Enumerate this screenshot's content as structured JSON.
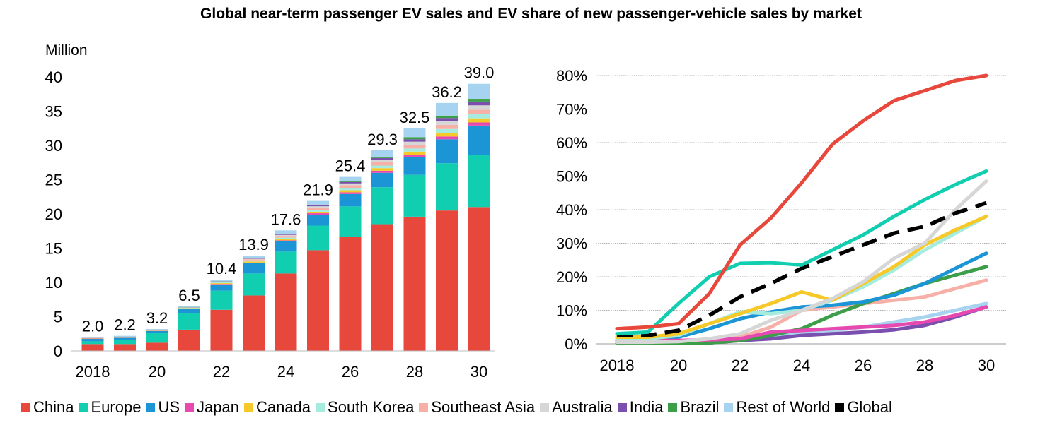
{
  "title": "Global near-term passenger EV sales and EV share of new passenger-vehicle sales by market",
  "colors": {
    "China": "#e8473b",
    "Europe": "#12ceb0",
    "US": "#1b95d6",
    "Japan": "#e64ab0",
    "Canada": "#f6c928",
    "South Korea": "#a6ecde",
    "Southeast Asia": "#f7b0a8",
    "Australia": "#d6d6d6",
    "India": "#7b4fae",
    "Brazil": "#3c9e48",
    "Rest of World": "#a6d3ef",
    "Global": "#000000",
    "Global share (dashed)": "#000000"
  },
  "legend": [
    "China",
    "Europe",
    "US",
    "Japan",
    "Canada",
    "South Korea",
    "Southeast Asia",
    "Australia",
    "India",
    "Brazil",
    "Rest of World",
    "Global"
  ],
  "chart_data": [
    {
      "type": "bar",
      "stacked": true,
      "title": "",
      "ylabel": "Million",
      "ylim": [
        0,
        40
      ],
      "yticks": [
        0,
        5,
        10,
        15,
        20,
        25,
        30,
        35,
        40
      ],
      "x": [
        2018,
        2019,
        2020,
        2021,
        2022,
        2023,
        2024,
        2025,
        2026,
        2027,
        2028,
        2029,
        2030
      ],
      "xtick_labels": [
        "2018",
        "",
        "20",
        "",
        "22",
        "",
        "24",
        "",
        "26",
        "",
        "28",
        "",
        "30"
      ],
      "totals": [
        2.0,
        2.2,
        3.2,
        6.5,
        10.4,
        13.9,
        17.6,
        21.9,
        25.4,
        29.3,
        32.5,
        36.2,
        39.0
      ],
      "total_labels": [
        "2.0",
        "2.2",
        "3.2",
        "6.5",
        "10.4",
        "13.9",
        "17.6",
        "21.9",
        "25.4",
        "29.3",
        "32.5",
        "36.2",
        "39.0"
      ],
      "series": [
        {
          "name": "China",
          "values": [
            1.0,
            1.0,
            1.2,
            3.1,
            6.0,
            8.1,
            11.3,
            14.7,
            16.7,
            18.5,
            19.6,
            20.5,
            21.0
          ]
        },
        {
          "name": "Europe",
          "values": [
            0.4,
            0.6,
            1.4,
            2.4,
            2.8,
            3.2,
            3.2,
            3.6,
            4.4,
            5.4,
            6.1,
            6.9,
            7.6
          ]
        },
        {
          "name": "US",
          "values": [
            0.35,
            0.3,
            0.3,
            0.6,
            0.9,
            1.5,
            1.5,
            1.6,
            1.8,
            2.1,
            2.6,
            3.5,
            4.3
          ]
        },
        {
          "name": "Japan",
          "values": [
            0.05,
            0.03,
            0.03,
            0.05,
            0.07,
            0.1,
            0.14,
            0.2,
            0.25,
            0.3,
            0.35,
            0.4,
            0.45
          ]
        },
        {
          "name": "Canada",
          "values": [
            0.05,
            0.05,
            0.05,
            0.08,
            0.12,
            0.16,
            0.2,
            0.22,
            0.3,
            0.38,
            0.45,
            0.55,
            0.6
          ]
        },
        {
          "name": "South Korea",
          "values": [
            0.03,
            0.04,
            0.05,
            0.1,
            0.12,
            0.15,
            0.2,
            0.25,
            0.3,
            0.38,
            0.45,
            0.55,
            0.6
          ]
        },
        {
          "name": "Southeast Asia",
          "values": [
            0.01,
            0.01,
            0.02,
            0.04,
            0.08,
            0.15,
            0.25,
            0.35,
            0.45,
            0.5,
            0.55,
            0.6,
            0.65
          ]
        },
        {
          "name": "Australia",
          "values": [
            0.01,
            0.01,
            0.02,
            0.02,
            0.04,
            0.1,
            0.15,
            0.2,
            0.25,
            0.35,
            0.45,
            0.55,
            0.65
          ]
        },
        {
          "name": "India",
          "values": [
            0.0,
            0.0,
            0.0,
            0.01,
            0.03,
            0.08,
            0.1,
            0.15,
            0.2,
            0.25,
            0.35,
            0.45,
            0.55
          ]
        },
        {
          "name": "Brazil",
          "values": [
            0.0,
            0.0,
            0.01,
            0.01,
            0.02,
            0.05,
            0.06,
            0.08,
            0.15,
            0.2,
            0.3,
            0.35,
            0.4
          ]
        },
        {
          "name": "Rest of World",
          "values": [
            0.1,
            0.16,
            0.12,
            0.09,
            0.22,
            0.31,
            0.5,
            0.55,
            0.6,
            0.92,
            1.29,
            1.85,
            2.2
          ]
        }
      ]
    },
    {
      "type": "line",
      "title": "",
      "ylabel": "",
      "ylim": [
        0,
        80
      ],
      "yticks": [
        0,
        10,
        20,
        30,
        40,
        50,
        60,
        70,
        80
      ],
      "ytick_labels": [
        "0%",
        "10%",
        "20%",
        "30%",
        "40%",
        "50%",
        "60%",
        "70%",
        "80%"
      ],
      "x": [
        2018,
        2019,
        2020,
        2021,
        2022,
        2023,
        2024,
        2025,
        2026,
        2027,
        2028,
        2029,
        2030
      ],
      "xtick_labels": [
        "2018",
        "",
        "20",
        "",
        "22",
        "",
        "24",
        "",
        "26",
        "",
        "28",
        "",
        "30"
      ],
      "series": [
        {
          "name": "Rest of World",
          "values": [
            0.5,
            0.5,
            0.6,
            0.8,
            1.5,
            2.5,
            3.5,
            4.0,
            5.0,
            6.5,
            8.0,
            10.0,
            12.0
          ]
        },
        {
          "name": "India",
          "values": [
            0.2,
            0.2,
            0.2,
            0.3,
            1.0,
            1.5,
            2.5,
            3.0,
            3.5,
            4.2,
            5.5,
            8.0,
            11.0
          ]
        },
        {
          "name": "Southeast Asia",
          "values": [
            0.5,
            0.5,
            0.6,
            0.8,
            2.0,
            5.0,
            10.0,
            11.0,
            12.0,
            13.0,
            14.0,
            16.5,
            19.0
          ]
        },
        {
          "name": "Brazil",
          "values": [
            0.2,
            0.2,
            0.2,
            0.3,
            1.0,
            2.5,
            4.5,
            8.5,
            12.0,
            15.0,
            18.0,
            20.5,
            23.0
          ]
        },
        {
          "name": "US",
          "values": [
            2.0,
            2.0,
            2.0,
            4.5,
            7.5,
            9.5,
            11.0,
            11.5,
            12.5,
            14.5,
            18.0,
            22.5,
            27.0
          ]
        },
        {
          "name": "Japan",
          "values": [
            1.0,
            1.0,
            1.0,
            1.2,
            1.5,
            3.5,
            4.0,
            4.5,
            5.0,
            5.5,
            6.5,
            8.5,
            11.0
          ]
        },
        {
          "name": "South Korea",
          "values": [
            1.5,
            1.5,
            2.5,
            6.0,
            9.5,
            9.0,
            10.0,
            13.0,
            17.0,
            22.0,
            28.0,
            33.0,
            38.0
          ]
        },
        {
          "name": "Canada",
          "values": [
            2.0,
            2.0,
            3.0,
            6.0,
            9.0,
            12.0,
            15.5,
            13.0,
            18.0,
            23.0,
            29.5,
            34.0,
            38.0
          ]
        },
        {
          "name": "Australia",
          "values": [
            0.5,
            0.5,
            0.7,
            1.5,
            3.0,
            7.0,
            10.0,
            13.5,
            18.5,
            25.5,
            30.0,
            40.0,
            48.5
          ]
        },
        {
          "name": "Global",
          "values": [
            2.5,
            2.5,
            4.0,
            8.5,
            14.0,
            18.0,
            22.5,
            26.0,
            29.5,
            33.0,
            35.0,
            39.0,
            42.0
          ],
          "dashed": true
        },
        {
          "name": "Europe",
          "values": [
            3.0,
            3.5,
            12.0,
            20.0,
            24.0,
            24.2,
            23.5,
            28.0,
            32.5,
            38.0,
            43.0,
            47.5,
            51.5
          ]
        },
        {
          "name": "China",
          "values": [
            4.5,
            5.0,
            6.0,
            15.0,
            29.5,
            37.5,
            48.0,
            59.5,
            66.5,
            72.5,
            75.5,
            78.5,
            80.0
          ]
        }
      ]
    }
  ]
}
